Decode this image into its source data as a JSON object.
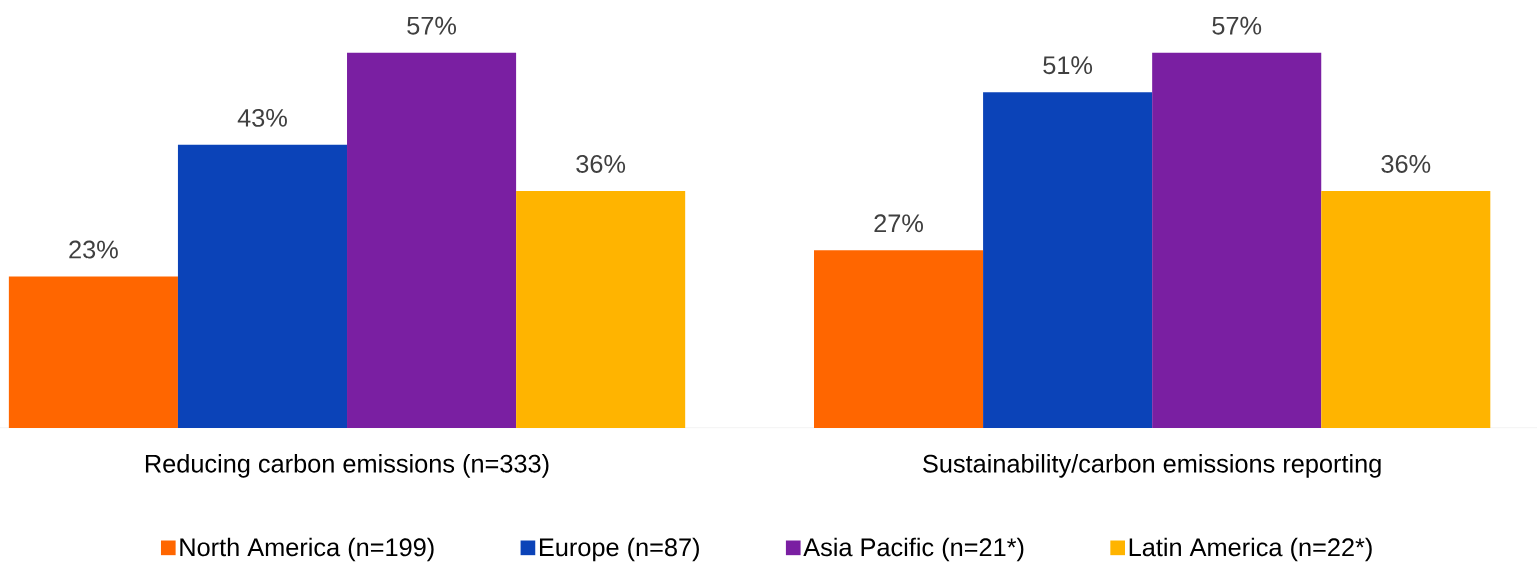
{
  "chart_data": {
    "type": "bar",
    "categories": [
      "Reducing carbon emissions (n=333)",
      "Sustainability/carbon emissions reporting"
    ],
    "series": [
      {
        "name": "North America (n=199)",
        "color": "#ff6600",
        "values": [
          23,
          27
        ],
        "value_labels": [
          "23%",
          "27%"
        ]
      },
      {
        "name": "Europe (n=87)",
        "color": "#0b43b8",
        "values": [
          43,
          51
        ],
        "value_labels": [
          "43%",
          "51%"
        ]
      },
      {
        "name": "Asia Pacific (n=21*)",
        "color": "#7a1fa2",
        "values": [
          57,
          57
        ],
        "value_labels": [
          "57%",
          "57%"
        ]
      },
      {
        "name": "Latin America (n=22*)",
        "color": "#ffb400",
        "values": [
          36,
          36
        ],
        "value_labels": [
          "36%",
          "36%"
        ]
      }
    ],
    "legend": "bottom"
  }
}
